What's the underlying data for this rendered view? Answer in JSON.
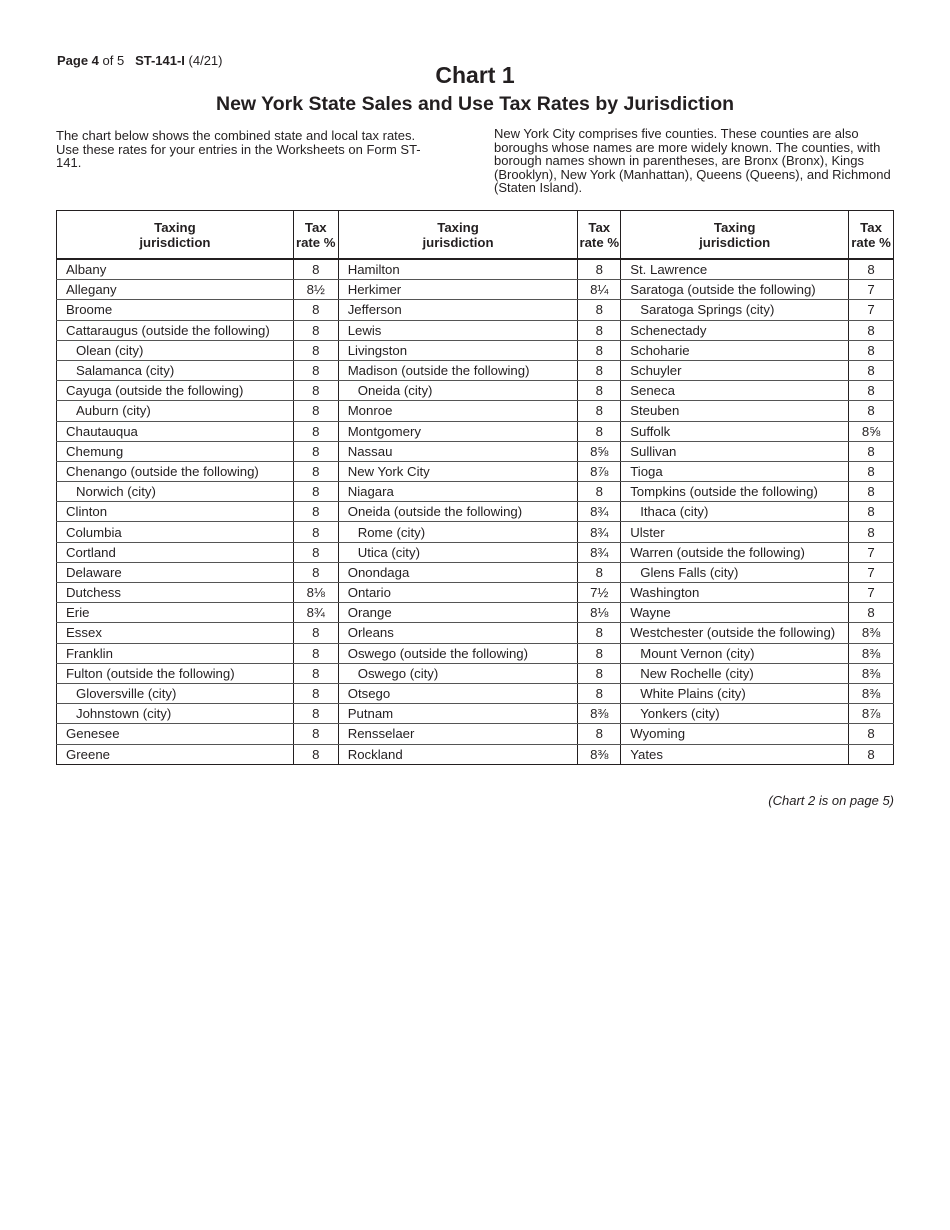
{
  "header": {
    "page_bold": "Page 4",
    "page_rest": " of 5",
    "form": "ST-141-I",
    "date": " (4/21)"
  },
  "title": "Chart 1",
  "subtitle": "New York State Sales and Use Tax Rates by Jurisdiction",
  "intro_left": "The chart below shows the combined state and local tax rates. Use these rates for your entries in the Worksheets on Form ST-141.",
  "intro_right": "New York City comprises five counties. These counties are also boroughs whose names are more widely known. The counties, with borough names shown in parentheses, are Bronx (Bronx), Kings (Brooklyn), New York (Manhattan), Queens (Queens), and Richmond (Staten Island).",
  "table": {
    "col_header_name": [
      "Taxing",
      "jurisdiction"
    ],
    "col_header_rate": [
      "Tax",
      "rate %"
    ],
    "columns": [
      [
        [
          "Albany",
          "8",
          0
        ],
        [
          "Allegany",
          "8½",
          0
        ],
        [
          "Broome",
          "8",
          0
        ],
        [
          "Cattaraugus (outside the following)",
          "8",
          0
        ],
        [
          "Olean (city)",
          "8",
          1
        ],
        [
          "Salamanca (city)",
          "8",
          1
        ],
        [
          "Cayuga (outside the following)",
          "8",
          0
        ],
        [
          "Auburn (city)",
          "8",
          1
        ],
        [
          "Chautauqua",
          "8",
          0
        ],
        [
          "Chemung",
          "8",
          0
        ],
        [
          "Chenango (outside the following)",
          "8",
          0
        ],
        [
          "Norwich (city)",
          "8",
          1
        ],
        [
          "Clinton",
          "8",
          0
        ],
        [
          "Columbia",
          "8",
          0
        ],
        [
          "Cortland",
          "8",
          0
        ],
        [
          "Delaware",
          "8",
          0
        ],
        [
          "Dutchess",
          "8⅛",
          0
        ],
        [
          "Erie",
          "8¾",
          0
        ],
        [
          "Essex",
          "8",
          0
        ],
        [
          "Franklin",
          "8",
          0
        ],
        [
          "Fulton (outside the following)",
          "8",
          0
        ],
        [
          "Gloversville (city)",
          "8",
          1
        ],
        [
          "Johnstown (city)",
          "8",
          1
        ],
        [
          "Genesee",
          "8",
          0
        ],
        [
          "Greene",
          "8",
          0
        ]
      ],
      [
        [
          "Hamilton",
          "8",
          0
        ],
        [
          "Herkimer",
          "8¼",
          0
        ],
        [
          "Jefferson",
          "8",
          0
        ],
        [
          "Lewis",
          "8",
          0
        ],
        [
          "Livingston",
          "8",
          0
        ],
        [
          "Madison (outside the following)",
          "8",
          0
        ],
        [
          "Oneida (city)",
          "8",
          1
        ],
        [
          "Monroe",
          "8",
          0
        ],
        [
          "Montgomery",
          "8",
          0
        ],
        [
          "Nassau",
          "8⅝",
          0
        ],
        [
          "New York City",
          "8⅞",
          0
        ],
        [
          "Niagara",
          "8",
          0
        ],
        [
          "Oneida (outside the following)",
          "8¾",
          0
        ],
        [
          "Rome (city)",
          "8¾",
          1
        ],
        [
          "Utica (city)",
          "8¾",
          1
        ],
        [
          "Onondaga",
          "8",
          0
        ],
        [
          "Ontario",
          "7½",
          0
        ],
        [
          "Orange",
          "8⅛",
          0
        ],
        [
          "Orleans",
          "8",
          0
        ],
        [
          "Oswego (outside the following)",
          "8",
          0
        ],
        [
          "Oswego (city)",
          "8",
          1
        ],
        [
          "Otsego",
          "8",
          0
        ],
        [
          "Putnam",
          "8⅜",
          0
        ],
        [
          "Rensselaer",
          "8",
          0
        ],
        [
          "Rockland",
          "8⅜",
          0
        ]
      ],
      [
        [
          "St. Lawrence",
          "8",
          0
        ],
        [
          "Saratoga (outside the following)",
          "7",
          0
        ],
        [
          "Saratoga Springs (city)",
          "7",
          1
        ],
        [
          "Schenectady",
          "8",
          0
        ],
        [
          "Schoharie",
          "8",
          0
        ],
        [
          "Schuyler",
          "8",
          0
        ],
        [
          "Seneca",
          "8",
          0
        ],
        [
          "Steuben",
          "8",
          0
        ],
        [
          "Suffolk",
          "8⅝",
          0
        ],
        [
          "Sullivan",
          "8",
          0
        ],
        [
          "Tioga",
          "8",
          0
        ],
        [
          "Tompkins (outside the following)",
          "8",
          0
        ],
        [
          "Ithaca (city)",
          "8",
          1
        ],
        [
          "Ulster",
          "8",
          0
        ],
        [
          "Warren (outside the following)",
          "7",
          0
        ],
        [
          "Glens Falls (city)",
          "7",
          1
        ],
        [
          "Washington",
          "7",
          0
        ],
        [
          "Wayne",
          "8",
          0
        ],
        [
          "Westchester (outside the following)",
          "8⅜",
          0
        ],
        [
          "Mount Vernon (city)",
          "8⅜",
          1
        ],
        [
          "New Rochelle (city)",
          "8⅜",
          1
        ],
        [
          "White Plains (city)",
          "8⅜",
          1
        ],
        [
          "Yonkers (city)",
          "8⅞",
          1
        ],
        [
          "Wyoming",
          "8",
          0
        ],
        [
          "Yates",
          "8",
          0
        ]
      ]
    ]
  },
  "footer": "(Chart 2 is on page 5)"
}
